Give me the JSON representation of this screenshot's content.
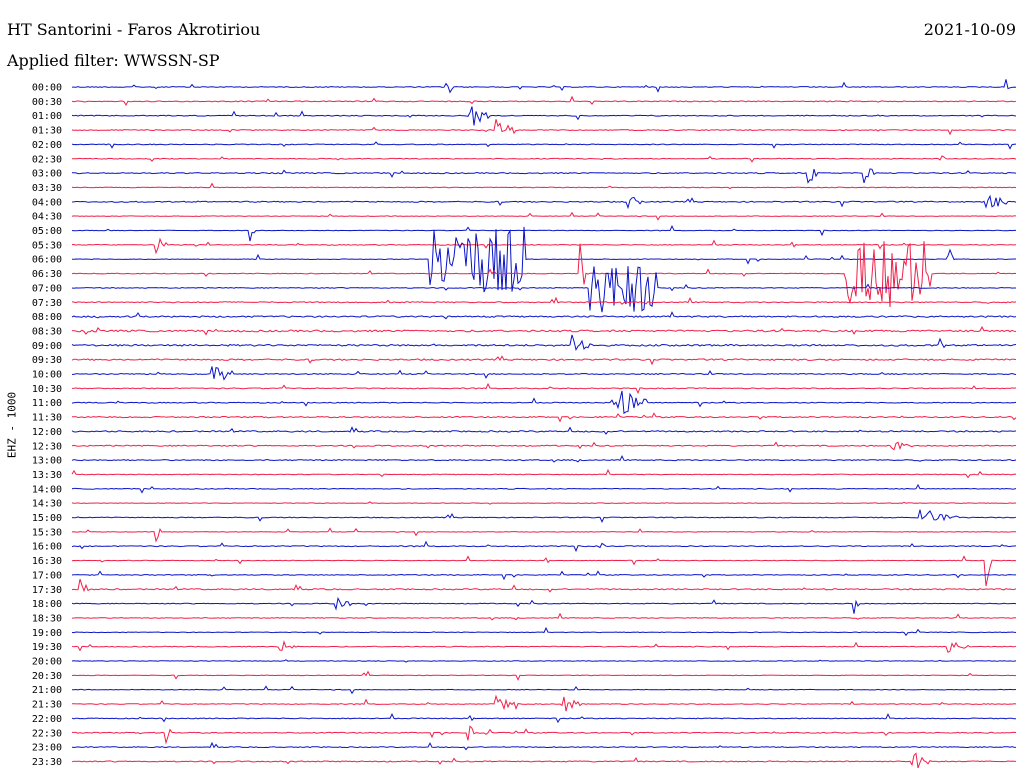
{
  "header": {
    "station": "HT Santorini - Faros Akrotiriou",
    "date": "2021-10-09",
    "filter": "Applied filter: WWSSN-SP"
  },
  "channel_label": "EHZ - 1000",
  "colors": {
    "even": "#0a14c8",
    "odd": "#f0204a"
  },
  "chart_data": {
    "type": "line",
    "title": "HT Santorini - Faros Akrotiriou",
    "subtitle": "Applied filter: WWSSN-SP",
    "ylabel": "EHZ - 1000",
    "xlabel": "",
    "legend": "none",
    "grid": false,
    "row_labels": [
      "00:00",
      "00:30",
      "01:00",
      "01:30",
      "02:00",
      "02:30",
      "03:00",
      "03:30",
      "04:00",
      "04:30",
      "05:00",
      "05:30",
      "06:00",
      "06:30",
      "07:00",
      "07:30",
      "08:00",
      "08:30",
      "09:00",
      "09:30",
      "10:00",
      "10:30",
      "11:00",
      "11:30",
      "12:00",
      "12:30",
      "13:00",
      "13:30",
      "14:00",
      "14:30",
      "15:00",
      "15:30",
      "16:00",
      "16:30",
      "17:00",
      "17:30",
      "18:00",
      "18:30",
      "19:00",
      "19:30",
      "20:00",
      "20:30",
      "21:00",
      "21:30",
      "22:00",
      "22:30",
      "23:00",
      "23:30"
    ],
    "row_color_pattern": [
      "even",
      "odd"
    ],
    "noise_level": [
      0.3,
      0.3,
      0.3,
      0.3,
      0.25,
      0.25,
      0.35,
      0.25,
      0.35,
      0.2,
      0.15,
      0.25,
      0.2,
      0.25,
      0.25,
      0.35,
      0.5,
      0.6,
      0.55,
      0.5,
      0.35,
      0.3,
      0.3,
      0.4,
      0.45,
      0.35,
      0.35,
      0.25,
      0.25,
      0.2,
      0.3,
      0.2,
      0.3,
      0.2,
      0.25,
      0.4,
      0.25,
      0.25,
      0.2,
      0.25,
      0.2,
      0.2,
      0.2,
      0.25,
      0.3,
      0.3,
      0.3,
      0.35
    ],
    "events": [
      {
        "row": 0,
        "t": 0.4,
        "amp": 1.0
      },
      {
        "row": 0,
        "t": 0.99,
        "amp": 0.6
      },
      {
        "row": 2,
        "t": 0.42,
        "amp": 1.1,
        "dur": 0.02
      },
      {
        "row": 3,
        "t": 0.45,
        "amp": 1.0,
        "dur": 0.02
      },
      {
        "row": 5,
        "t": 0.92,
        "amp": 0.6
      },
      {
        "row": 6,
        "t": 0.78,
        "amp": 1.0,
        "dur": 0.01
      },
      {
        "row": 6,
        "t": 0.84,
        "amp": 1.0,
        "dur": 0.01
      },
      {
        "row": 8,
        "t": 0.97,
        "amp": 0.9,
        "dur": 0.02
      },
      {
        "row": 8,
        "t": 0.59,
        "amp": 0.6,
        "dur": 0.015
      },
      {
        "row": 10,
        "t": 0.19,
        "amp": 0.7
      },
      {
        "row": 11,
        "t": 0.09,
        "amp": 0.7,
        "dur": 0.01
      },
      {
        "row": 12,
        "t": 0.38,
        "amp": 2.6,
        "dur": 0.1,
        "burst": true
      },
      {
        "row": 12,
        "t": 0.93,
        "amp": 1.0
      },
      {
        "row": 13,
        "t": 0.54,
        "amp": 1.8
      },
      {
        "row": 13,
        "t": 0.82,
        "amp": 2.6,
        "dur": 0.09,
        "burst": true
      },
      {
        "row": 14,
        "t": 0.55,
        "amp": 2.0,
        "dur": 0.07,
        "burst": true
      },
      {
        "row": 15,
        "t": 0.51,
        "amp": 0.8
      },
      {
        "row": 18,
        "t": 0.53,
        "amp": 0.8,
        "dur": 0.02
      },
      {
        "row": 18,
        "t": 0.92,
        "amp": 1.0
      },
      {
        "row": 20,
        "t": 0.15,
        "amp": 1.0,
        "dur": 0.02
      },
      {
        "row": 22,
        "t": 0.58,
        "amp": 1.1,
        "dur": 0.03
      },
      {
        "row": 25,
        "t": 0.87,
        "amp": 0.5,
        "dur": 0.02
      },
      {
        "row": 30,
        "t": 0.9,
        "amp": 0.7,
        "dur": 0.04
      },
      {
        "row": 31,
        "t": 0.09,
        "amp": 0.9
      },
      {
        "row": 32,
        "t": 0.56,
        "amp": 0.6
      },
      {
        "row": 33,
        "t": 0.97,
        "amp": 1.6
      },
      {
        "row": 35,
        "t": 0.01,
        "amp": 0.7,
        "dur": 0.01
      },
      {
        "row": 36,
        "t": 0.28,
        "amp": 0.6,
        "dur": 0.015
      },
      {
        "row": 36,
        "t": 0.83,
        "amp": 1.0
      },
      {
        "row": 39,
        "t": 0.22,
        "amp": 0.5,
        "dur": 0.02
      },
      {
        "row": 39,
        "t": 0.93,
        "amp": 0.5,
        "dur": 0.02
      },
      {
        "row": 43,
        "t": 0.45,
        "amp": 0.6,
        "dur": 0.02
      },
      {
        "row": 43,
        "t": 0.52,
        "amp": 0.7,
        "dur": 0.02
      },
      {
        "row": 45,
        "t": 0.42,
        "amp": 0.6,
        "dur": 0.02
      },
      {
        "row": 45,
        "t": 0.1,
        "amp": 1.0
      },
      {
        "row": 47,
        "t": 0.89,
        "amp": 0.8,
        "dur": 0.02
      }
    ]
  }
}
